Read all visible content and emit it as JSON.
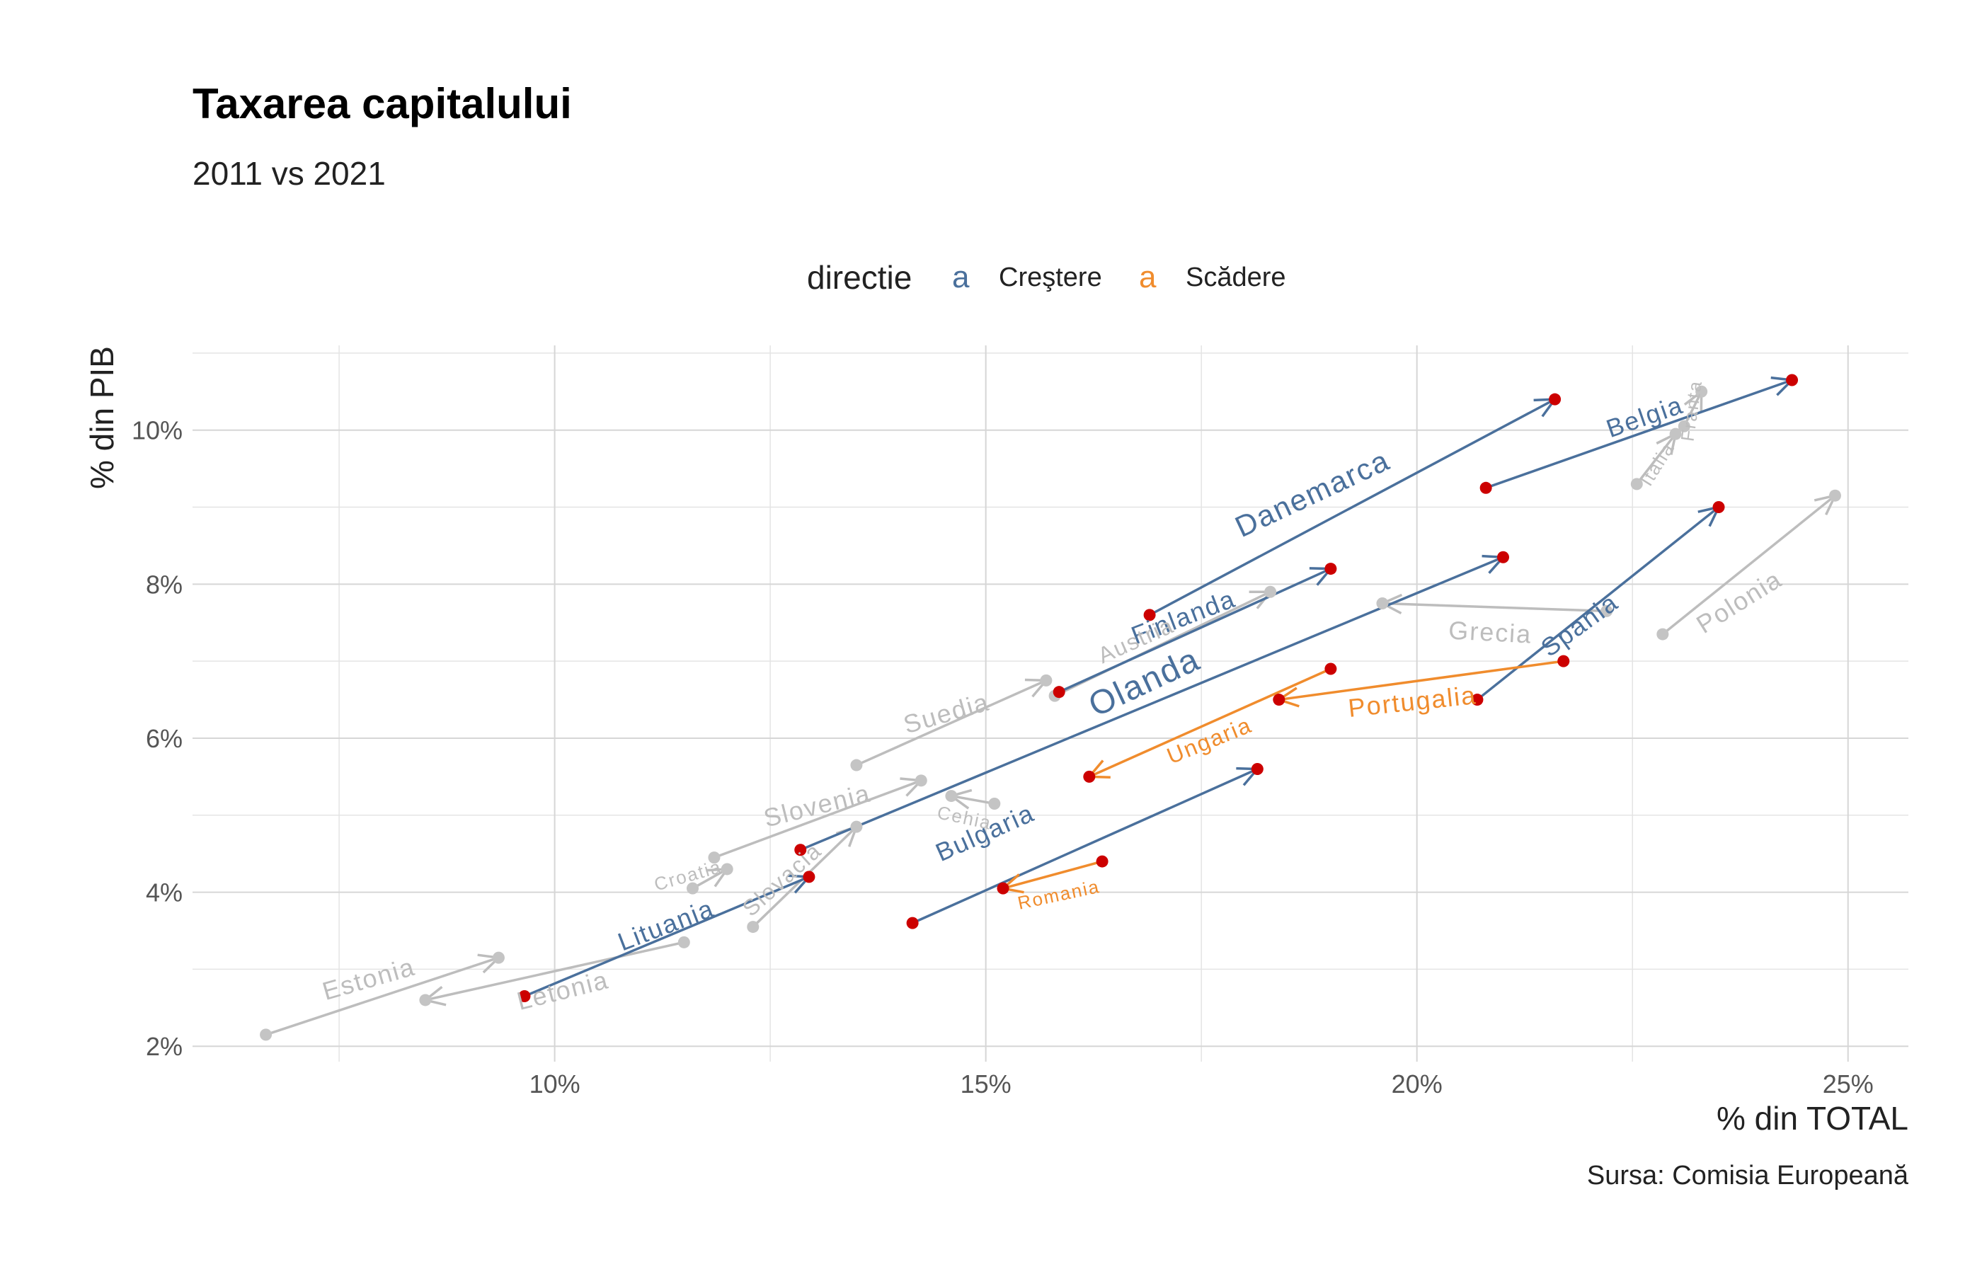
{
  "title": "Taxarea capitalului",
  "subtitle": "2011 vs 2021",
  "caption": "Sursa: Comisia Europeană",
  "chart_data": {
    "type": "arrow-scatter",
    "xlabel": "% din TOTAL",
    "ylabel": "% din PIB",
    "xlim": [
      5.8,
      25.7
    ],
    "ylim": [
      1.8,
      11.1
    ],
    "x_ticks": [
      10,
      15,
      20,
      25
    ],
    "x_tick_labels": [
      "10%",
      "15%",
      "20%",
      "25%"
    ],
    "y_ticks": [
      2,
      4,
      6,
      8,
      10
    ],
    "y_tick_labels": [
      "2%",
      "4%",
      "6%",
      "8%",
      "10%"
    ],
    "grid": true,
    "legend": {
      "title": "directie",
      "position": "top",
      "entries": [
        {
          "label": "Creştere",
          "key": "a",
          "color": "#4a709c"
        },
        {
          "label": "Scădere",
          "key": "a",
          "color": "#f08c2d"
        }
      ]
    },
    "colors": {
      "Crestere": "#4a709c",
      "Scadere": "#f08c2d",
      "other": "#bdbdbd",
      "point_highlight": "#cc0000"
    },
    "series": [
      {
        "name": "Danemarca",
        "group": "Crestere",
        "x2011": 16.9,
        "y2011": 7.6,
        "x2021": 21.6,
        "y2021": 10.4
      },
      {
        "name": "Belgia",
        "group": "Crestere",
        "x2011": 20.8,
        "y2011": 9.25,
        "x2021": 24.35,
        "y2021": 10.65
      },
      {
        "name": "Finlanda",
        "group": "Crestere",
        "x2011": 15.85,
        "y2011": 6.6,
        "x2021": 19.0,
        "y2021": 8.2
      },
      {
        "name": "Olanda",
        "group": "Crestere",
        "x2011": 12.85,
        "y2011": 4.55,
        "x2021": 21.0,
        "y2021": 8.35
      },
      {
        "name": "Spania",
        "group": "Crestere",
        "x2011": 20.7,
        "y2011": 6.5,
        "x2021": 23.5,
        "y2021": 9.0
      },
      {
        "name": "Bulgaria",
        "group": "Crestere",
        "x2011": 14.15,
        "y2011": 3.6,
        "x2021": 18.15,
        "y2021": 5.6
      },
      {
        "name": "Lituania",
        "group": "Crestere",
        "x2011": 9.65,
        "y2011": 2.65,
        "x2021": 12.95,
        "y2021": 4.2
      },
      {
        "name": "Portugalia",
        "group": "Scadere",
        "x2011": 21.7,
        "y2011": 7.0,
        "x2021": 18.4,
        "y2021": 6.5
      },
      {
        "name": "Ungaria",
        "group": "Scadere",
        "x2011": 19.0,
        "y2011": 6.9,
        "x2021": 16.2,
        "y2021": 5.5
      },
      {
        "name": "Romania",
        "group": "Scadere",
        "x2011": 16.35,
        "y2011": 4.4,
        "x2021": 15.2,
        "y2021": 4.05
      },
      {
        "name": "Polonia",
        "group": "other",
        "x2011": 22.85,
        "y2011": 7.35,
        "x2021": 24.85,
        "y2021": 9.15
      },
      {
        "name": "Grecia",
        "group": "other",
        "x2011": 22.2,
        "y2011": 7.65,
        "x2021": 19.6,
        "y2021": 7.75
      },
      {
        "name": "Austria",
        "group": "other",
        "x2011": 15.8,
        "y2011": 6.55,
        "x2021": 18.3,
        "y2021": 7.9
      },
      {
        "name": "Suedia",
        "group": "other",
        "x2011": 13.5,
        "y2011": 5.65,
        "x2021": 15.7,
        "y2021": 6.75
      },
      {
        "name": "Slovenia",
        "group": "other",
        "x2011": 11.85,
        "y2011": 4.45,
        "x2021": 14.25,
        "y2021": 5.45
      },
      {
        "name": "Cehia",
        "group": "other",
        "x2011": 15.1,
        "y2011": 5.15,
        "x2021": 14.6,
        "y2021": 5.25
      },
      {
        "name": "Slovacia",
        "group": "other",
        "x2011": 12.3,
        "y2011": 3.55,
        "x2021": 13.5,
        "y2021": 4.85
      },
      {
        "name": "Croatia",
        "group": "other",
        "x2011": 11.6,
        "y2011": 4.05,
        "x2021": 12.0,
        "y2021": 4.3
      },
      {
        "name": "Estonia",
        "group": "other",
        "x2011": 6.65,
        "y2011": 2.15,
        "x2021": 9.35,
        "y2021": 3.15
      },
      {
        "name": "Letonia",
        "group": "other",
        "x2011": 11.5,
        "y2011": 3.35,
        "x2021": 8.5,
        "y2021": 2.6
      },
      {
        "name": "Italia",
        "group": "other",
        "x2011": 22.55,
        "y2011": 9.3,
        "x2021": 23.0,
        "y2021": 9.95
      },
      {
        "name": "Franta",
        "group": "other",
        "x2011": 23.1,
        "y2011": 10.05,
        "x2021": 23.3,
        "y2021": 10.5
      }
    ],
    "labels": [
      {
        "text": "Danemarca",
        "group": "Crestere",
        "x": 18.8,
        "y": 9.15,
        "angle": -25,
        "size": "l"
      },
      {
        "text": "Belgia",
        "group": "Crestere",
        "x": 22.65,
        "y": 10.15,
        "angle": -19,
        "size": "m"
      },
      {
        "text": "Finlanda",
        "group": "Crestere",
        "x": 17.3,
        "y": 7.55,
        "angle": -21,
        "size": "m"
      },
      {
        "text": "Olanda",
        "group": "Crestere",
        "x": 16.85,
        "y": 6.7,
        "angle": -25,
        "size": "xl"
      },
      {
        "text": "Spania",
        "group": "Crestere",
        "x": 21.9,
        "y": 7.45,
        "angle": -36,
        "size": "m"
      },
      {
        "text": "Bulgaria",
        "group": "Crestere",
        "x": 15.0,
        "y": 4.75,
        "angle": -24,
        "size": "m"
      },
      {
        "text": "Lituania",
        "group": "Crestere",
        "x": 11.3,
        "y": 3.55,
        "angle": -21,
        "size": "m"
      },
      {
        "text": "Portugalia",
        "group": "Scadere",
        "x": 19.95,
        "y": 6.45,
        "angle": -6,
        "size": "m"
      },
      {
        "text": "Ungaria",
        "group": "Scadere",
        "x": 17.6,
        "y": 5.95,
        "angle": -22,
        "size": "s"
      },
      {
        "text": "Romania",
        "group": "Scadere",
        "x": 15.85,
        "y": 3.95,
        "angle": -12,
        "size": "xs"
      },
      {
        "text": "Polonia",
        "group": "other",
        "x": 23.75,
        "y": 7.75,
        "angle": -32,
        "size": "m"
      },
      {
        "text": "Grecia",
        "group": "other",
        "x": 20.85,
        "y": 7.35,
        "angle": 3,
        "size": "m"
      },
      {
        "text": "Austria",
        "group": "other",
        "x": 16.75,
        "y": 7.25,
        "angle": -24,
        "size": "s"
      },
      {
        "text": "Suedia",
        "group": "other",
        "x": 14.55,
        "y": 6.3,
        "angle": -16,
        "size": "m"
      },
      {
        "text": "Slovenia",
        "group": "other",
        "x": 13.05,
        "y": 5.1,
        "angle": -14,
        "size": "m"
      },
      {
        "text": "Cehia",
        "group": "other",
        "x": 14.75,
        "y": 4.95,
        "angle": 12,
        "size": "xs"
      },
      {
        "text": "Slovacia",
        "group": "other",
        "x": 12.65,
        "y": 4.15,
        "angle": -42,
        "size": "s"
      },
      {
        "text": "Croatia",
        "group": "other",
        "x": 11.55,
        "y": 4.2,
        "angle": -16,
        "size": "xs"
      },
      {
        "text": "Estonia",
        "group": "other",
        "x": 7.85,
        "y": 2.85,
        "angle": -16,
        "size": "m"
      },
      {
        "text": "Letonia",
        "group": "other",
        "x": 10.1,
        "y": 2.7,
        "angle": -14,
        "size": "m"
      },
      {
        "text": "Italia",
        "group": "other",
        "x": 22.8,
        "y": 9.55,
        "angle": -58,
        "size": "xs"
      },
      {
        "text": "Franta",
        "group": "other",
        "x": 23.2,
        "y": 10.25,
        "angle": -82,
        "size": "xs"
      }
    ]
  }
}
